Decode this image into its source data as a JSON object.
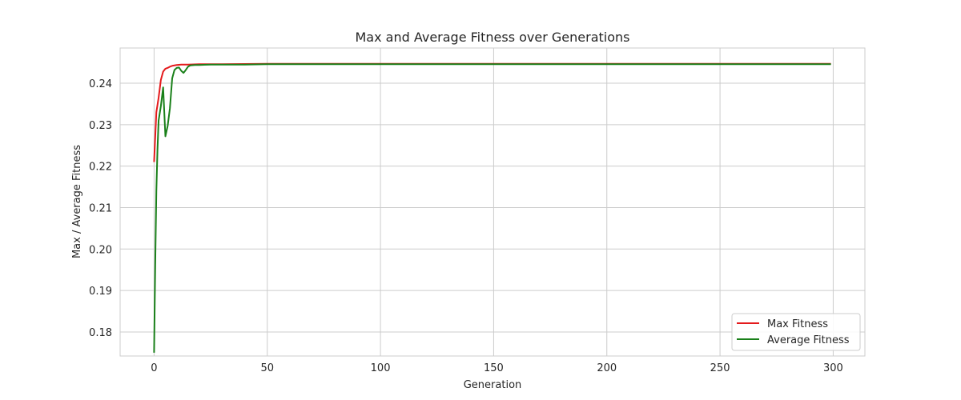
{
  "chart_data": {
    "type": "line",
    "title": "Max and Average Fitness over Generations",
    "xlabel": "Generation",
    "ylabel": "Max / Average Fitness",
    "xlim": [
      -15,
      314
    ],
    "ylim": [
      0.1742,
      0.2485
    ],
    "xticks": [
      0,
      50,
      100,
      150,
      200,
      250,
      300
    ],
    "yticks": [
      0.18,
      0.19,
      0.2,
      0.21,
      0.22,
      0.23,
      0.24
    ],
    "ytick_labels": [
      "0.18",
      "0.19",
      "0.20",
      "0.21",
      "0.22",
      "0.23",
      "0.24"
    ],
    "grid": true,
    "legend_position": "lower-right",
    "series": [
      {
        "name": "Max Fitness",
        "color": "#e41a1c",
        "x": [
          0,
          1,
          2,
          3,
          4,
          5,
          6,
          7,
          8,
          9,
          10,
          12,
          15,
          20,
          30,
          50,
          100,
          150,
          200,
          250,
          299
        ],
        "y": [
          0.221,
          0.233,
          0.2365,
          0.2408,
          0.2428,
          0.2435,
          0.2437,
          0.244,
          0.2442,
          0.2443,
          0.2444,
          0.2445,
          0.2445,
          0.2446,
          0.2446,
          0.2447,
          0.2447,
          0.2447,
          0.2447,
          0.2447,
          0.2447
        ]
      },
      {
        "name": "Average Fitness",
        "color": "#1a801a",
        "x": [
          0,
          0.5,
          1,
          1.5,
          2,
          3,
          4,
          5,
          6,
          7,
          8,
          9,
          10,
          11,
          12,
          13,
          14,
          15,
          16,
          18,
          20,
          25,
          30,
          40,
          50,
          70,
          100,
          150,
          200,
          250,
          299
        ],
        "y": [
          0.175,
          0.196,
          0.214,
          0.224,
          0.231,
          0.2345,
          0.239,
          0.2272,
          0.2297,
          0.234,
          0.2412,
          0.2432,
          0.2437,
          0.2438,
          0.243,
          0.2425,
          0.2432,
          0.244,
          0.2443,
          0.2444,
          0.2444,
          0.2445,
          0.2445,
          0.2445,
          0.2446,
          0.2446,
          0.2446,
          0.2446,
          0.2446,
          0.2446,
          0.2446
        ]
      }
    ]
  }
}
